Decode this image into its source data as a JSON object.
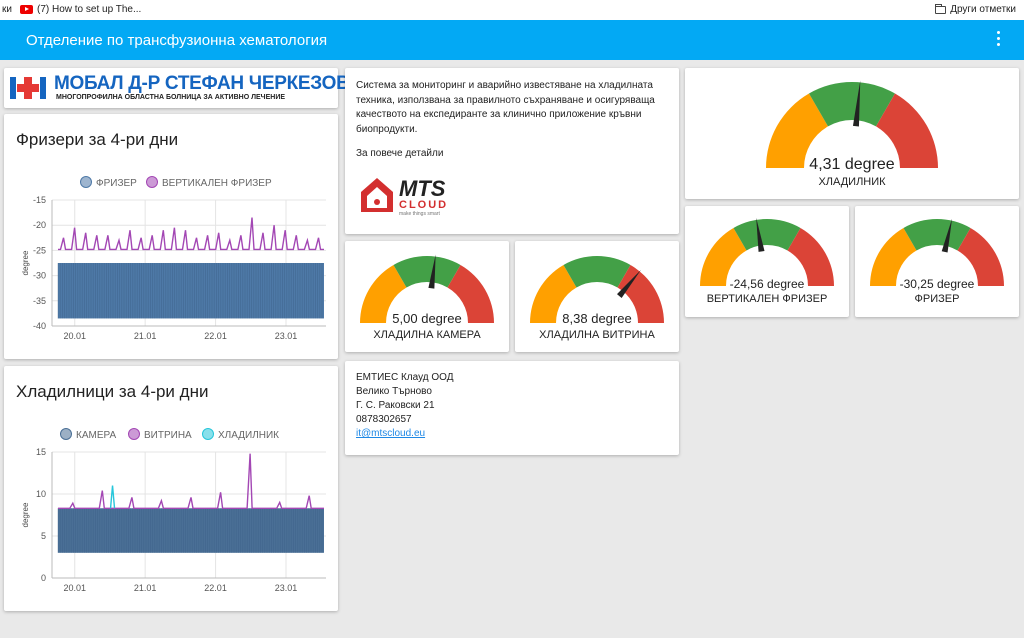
{
  "browser": {
    "bookmark_left_fragment": "ки",
    "bookmark_video": "(7) How to set up The...",
    "bookmark_other": "Други отметки"
  },
  "header": {
    "title": "Отделение по трансфузионна хематология"
  },
  "logo": {
    "title": "МОБАЛ Д-Р СТЕФАН ЧЕРКЕЗОВ АД",
    "subtitle": "МНОГОПРОФИЛНА ОБЛАСТНА БОЛНИЦА ЗА АКТИВНО ЛЕЧЕНИЕ"
  },
  "info": {
    "text": "Система за мониторинг и аварийно известяване на хладилната техника, използвана за правилното съхраняване и осигуряваща качеството на експедиранте за клинично приложение кръвни биопродукти.",
    "more": "За повече детайли",
    "brand_main": "MTS",
    "brand_sub": "CLOUD",
    "brand_tag": "make things smart"
  },
  "contact": {
    "company": "ЕМТИЕС Клауд ООД",
    "city": "Велико Търново",
    "address": "Г. С. Раковски 21",
    "phone": "0878302657",
    "email": "it@mtscloud.eu"
  },
  "gauges": {
    "fridge": {
      "value": "4,31 degree",
      "label": "ХЛАДИЛНИК",
      "needle_fraction": 0.53
    },
    "vertical_freezer": {
      "value": "-24,56 degree",
      "label": "ВЕРТИКАЛЕН ФРИЗЕР",
      "needle_fraction": 0.45
    },
    "freezer": {
      "value": "-30,25 degree",
      "label": "ФРИЗЕР",
      "needle_fraction": 0.57
    },
    "cold_chamber": {
      "value": "5,00 degree",
      "label": "ХЛАДИЛНА КАМЕРА",
      "needle_fraction": 0.54
    },
    "cold_showcase": {
      "value": "8,38 degree",
      "label": "ХЛАДИЛНА ВИТРИНА",
      "needle_fraction": 0.72
    }
  },
  "colors": {
    "header": "#03a9f4",
    "gauge_low": "#ffa000",
    "gauge_mid": "#43a047",
    "gauge_high": "#db4437",
    "series_freezer": "#4e79a7",
    "series_vertical": "#a347b4",
    "series_camera": "#4a6f96",
    "series_showcase": "#a347b4",
    "series_fridge": "#26c6da"
  },
  "chart_data": [
    {
      "type": "line",
      "title": "Фризери за 4-ри дни",
      "ylabel": "degree",
      "xticks": [
        "20.01",
        "21.01",
        "22.01",
        "23.01"
      ],
      "yticks": [
        "-15",
        "-20",
        "-25",
        "-30",
        "-35",
        "-40"
      ],
      "ylim": [
        -40,
        -15
      ],
      "legend_position": "top-center",
      "grid": true,
      "series": [
        {
          "name": "ФРИЗЕР",
          "band": [
            -38.5,
            -27.5
          ]
        },
        {
          "name": "ВЕРТИКАЛЕН ФРИЗЕР",
          "baseline": -24.8,
          "peaks": [
            -22.5,
            -20.5,
            -21.5,
            -22,
            -22,
            -23,
            -21,
            -22.5,
            -22,
            -21,
            -20.5,
            -21,
            -22.5,
            -22,
            -21.5,
            -23,
            -22,
            -18.5,
            -21.5,
            -20,
            -21,
            -22,
            -23,
            -22.5
          ]
        }
      ]
    },
    {
      "type": "line",
      "title": "Хладилници за 4-ри дни",
      "ylabel": "degree",
      "xticks": [
        "20.01",
        "21.01",
        "22.01",
        "23.01"
      ],
      "yticks": [
        "15",
        "10",
        "5",
        "0"
      ],
      "ylim": [
        0,
        15
      ],
      "legend_position": "top-center",
      "grid": true,
      "series": [
        {
          "name": "КАМЕРА",
          "band": [
            3.0,
            8.3
          ]
        },
        {
          "name": "ВИТРИНА",
          "baseline": 8.3,
          "peaks": [
            8.9,
            10.4,
            9.6,
            9.2,
            9.6,
            10.2,
            14.8,
            9.0,
            9.8
          ]
        },
        {
          "name": "ХЛАДИЛНИК",
          "baseline": 4.3,
          "peaks": [
            11.0
          ]
        }
      ]
    }
  ]
}
